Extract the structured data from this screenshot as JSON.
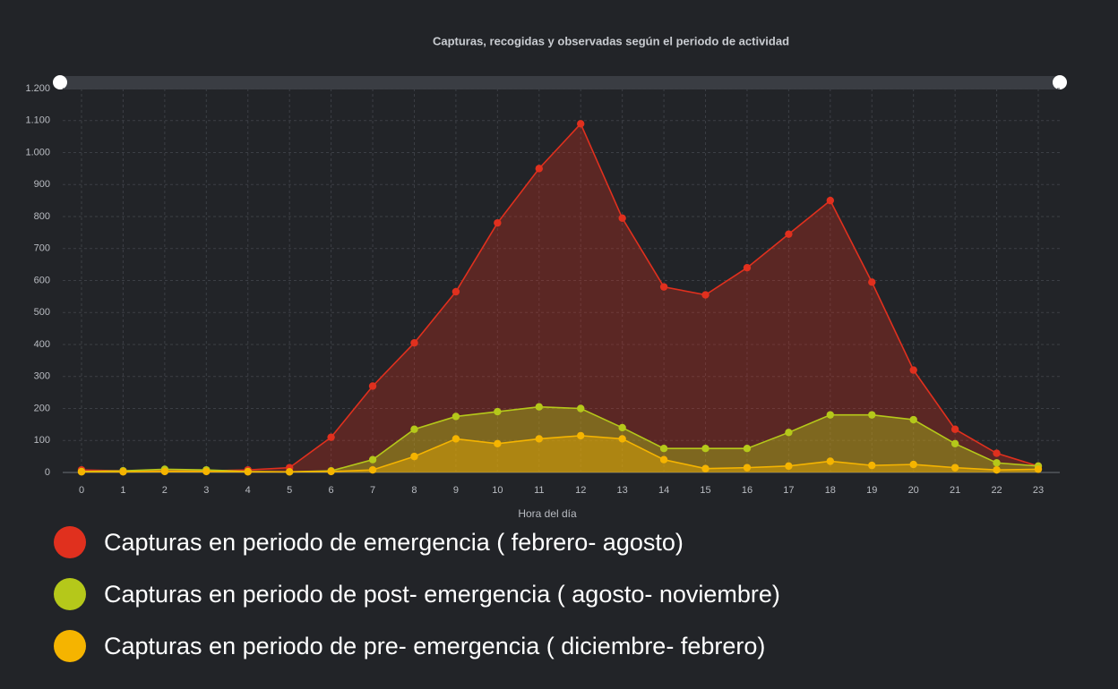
{
  "chart_data": {
    "type": "area",
    "title": "Capturas, recogidas y observadas según el periodo de actividad",
    "x_label": "Hora del día",
    "categories": [
      "0",
      "1",
      "2",
      "3",
      "4",
      "5",
      "6",
      "7",
      "8",
      "9",
      "10",
      "11",
      "12",
      "13",
      "14",
      "15",
      "16",
      "17",
      "18",
      "19",
      "20",
      "21",
      "22",
      "23"
    ],
    "ylim": [
      0,
      1200
    ],
    "yticks": [
      0,
      100,
      200,
      300,
      400,
      500,
      600,
      700,
      800,
      900,
      {
        "value": 1000,
        "label": "1.000"
      },
      {
        "value": 1100,
        "label": "1.100"
      },
      {
        "value": 1200,
        "label": "1.200"
      }
    ],
    "grid": true,
    "series": [
      {
        "name": "Capturas en periodo de emergencia ( febrero- agosto)",
        "color": "#e0301e",
        "values": [
          8,
          5,
          5,
          5,
          8,
          15,
          110,
          270,
          405,
          565,
          780,
          950,
          1090,
          795,
          580,
          555,
          640,
          745,
          850,
          595,
          320,
          135,
          60,
          20
        ]
      },
      {
        "name": "Capturas en periodo de post- emergencia ( agosto- noviembre)",
        "color": "#b5c81a",
        "values": [
          3,
          5,
          10,
          8,
          3,
          2,
          5,
          40,
          135,
          175,
          190,
          205,
          200,
          140,
          75,
          75,
          75,
          125,
          180,
          180,
          165,
          90,
          30,
          20
        ]
      },
      {
        "name": "Capturas en periodo de pre- emergencia ( diciembre- febrero)",
        "color": "#f5b400",
        "values": [
          2,
          2,
          3,
          3,
          2,
          2,
          3,
          8,
          50,
          105,
          90,
          105,
          115,
          105,
          40,
          12,
          15,
          20,
          35,
          22,
          25,
          15,
          8,
          10
        ]
      }
    ]
  }
}
